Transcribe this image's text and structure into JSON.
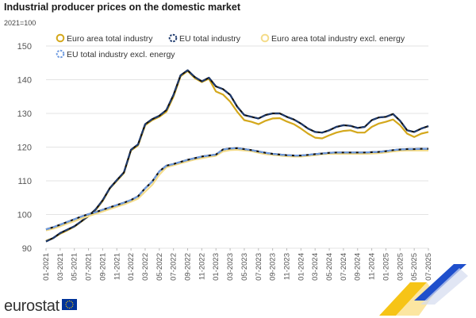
{
  "brand": {
    "name": "eurostat",
    "logo": "eurostat-logo"
  },
  "colors": {
    "ea_total": "#d4a81c",
    "eu_total": "#1f3b6e",
    "ea_excl": "#f4dc8a",
    "eu_excl": "#6f9be0",
    "grid": "#e3e3e3",
    "ribbon_blue": "#1f4fcc",
    "ribbon_yellow": "#f6c417"
  },
  "chart_data": {
    "type": "line",
    "title": "Industrial producer prices on the domestic market",
    "subtitle": "2021=100",
    "ylim": [
      90,
      150
    ],
    "yticks": [
      90,
      100,
      110,
      120,
      130,
      140,
      150
    ],
    "grid": true,
    "legend_position": "top-left",
    "categories": [
      "01-2021",
      "02-2021",
      "03-2021",
      "04-2021",
      "05-2021",
      "06-2021",
      "07-2021",
      "08-2021",
      "09-2021",
      "10-2021",
      "11-2021",
      "12-2021",
      "01-2022",
      "02-2022",
      "03-2022",
      "04-2022",
      "05-2022",
      "06-2022",
      "07-2022",
      "08-2022",
      "09-2022",
      "10-2022",
      "11-2022",
      "12-2022",
      "01-2023",
      "02-2023",
      "03-2023",
      "04-2023",
      "05-2023",
      "06-2023",
      "07-2023",
      "08-2023",
      "09-2023",
      "10-2023",
      "11-2023",
      "12-2023",
      "01-2024",
      "02-2024",
      "03-2024",
      "04-2024",
      "05-2024",
      "06-2024",
      "07-2024",
      "08-2024",
      "09-2024",
      "10-2024",
      "11-2024",
      "12-2024",
      "01-2025",
      "02-2025",
      "03-2025",
      "04-2025",
      "05-2025",
      "06-2025",
      "07-2025"
    ],
    "x_tick_labels": [
      "01-2021",
      "03-2021",
      "05-2021",
      "07-2021",
      "09-2021",
      "11-2021",
      "01-2022",
      "03-2022",
      "05-2022",
      "07-2022",
      "09-2022",
      "11-2022",
      "01-2023",
      "03-2023",
      "05-2023",
      "07-2023",
      "09-2023",
      "11-2023",
      "01-2024",
      "03-2024",
      "05-2024",
      "07-2024",
      "09-2024",
      "11-2024",
      "01-2025",
      "03-2025",
      "05-2025",
      "07-2025"
    ],
    "series": [
      {
        "name": "Euro area total industry",
        "color": "#d4a81c",
        "dash": false,
        "values": [
          92.2,
          93.0,
          94.3,
          95.3,
          96.4,
          97.9,
          99.5,
          101.3,
          104.0,
          107.7,
          110.0,
          112.3,
          119.0,
          120.5,
          126.5,
          128.0,
          129.0,
          130.5,
          135.0,
          141.0,
          142.6,
          140.5,
          139.3,
          140.3,
          136.5,
          135.6,
          133.5,
          130.5,
          128.0,
          127.5,
          126.8,
          127.8,
          128.5,
          128.6,
          127.6,
          126.8,
          125.5,
          124.0,
          122.8,
          122.6,
          123.5,
          124.3,
          124.8,
          125.0,
          124.3,
          124.3,
          126.0,
          127.0,
          127.5,
          128.2,
          126.5,
          124.0,
          123.0,
          124.0,
          124.5
        ]
      },
      {
        "name": "EU total industry",
        "color": "#1f3b6e",
        "dash": true,
        "values": [
          92.0,
          93.0,
          94.5,
          95.5,
          96.5,
          98.0,
          99.6,
          101.5,
          104.2,
          107.8,
          110.2,
          112.5,
          119.2,
          120.8,
          126.8,
          128.3,
          129.3,
          131.0,
          135.5,
          141.3,
          142.8,
          140.8,
          139.5,
          140.6,
          138.0,
          137.2,
          135.5,
          132.0,
          129.5,
          129.0,
          128.5,
          129.5,
          130.0,
          130.0,
          129.0,
          128.2,
          127.0,
          125.5,
          124.5,
          124.3,
          125.0,
          126.0,
          126.5,
          126.3,
          125.7,
          126.0,
          128.0,
          128.8,
          129.0,
          129.8,
          127.8,
          125.0,
          124.5,
          125.5,
          126.2
        ]
      },
      {
        "name": "Euro area total industry excl. energy",
        "color": "#f4dc8a",
        "dash": false,
        "values": [
          95.3,
          95.8,
          96.5,
          97.3,
          98.0,
          98.8,
          99.5,
          100.2,
          100.9,
          101.6,
          102.3,
          103.0,
          103.8,
          104.7,
          106.8,
          108.8,
          111.8,
          114.0,
          114.6,
          115.2,
          115.8,
          116.3,
          116.7,
          117.1,
          117.4,
          118.7,
          119.1,
          119.2,
          119.0,
          118.8,
          118.3,
          117.9,
          117.7,
          117.5,
          117.3,
          117.2,
          117.2,
          117.4,
          117.6,
          117.9,
          118.0,
          118.0,
          118.0,
          118.0,
          118.0,
          118.0,
          118.1,
          118.2,
          118.4,
          118.7,
          118.9,
          119.0,
          119.0,
          119.0,
          119.0
        ]
      },
      {
        "name": "EU total industry excl. energy",
        "color": "#6f9be0",
        "dash": true,
        "values": [
          95.6,
          96.2,
          97.0,
          97.8,
          98.6,
          99.4,
          100.1,
          100.7,
          101.4,
          102.1,
          102.8,
          103.5,
          104.3,
          105.4,
          107.8,
          109.8,
          112.8,
          114.5,
          115.0,
          115.6,
          116.2,
          116.7,
          117.2,
          117.5,
          117.8,
          119.3,
          119.6,
          119.7,
          119.4,
          119.1,
          118.7,
          118.3,
          118.0,
          117.8,
          117.6,
          117.5,
          117.5,
          117.7,
          117.9,
          118.1,
          118.3,
          118.4,
          118.4,
          118.4,
          118.4,
          118.4,
          118.5,
          118.6,
          118.8,
          119.1,
          119.3,
          119.4,
          119.4,
          119.5,
          119.5
        ]
      }
    ]
  }
}
